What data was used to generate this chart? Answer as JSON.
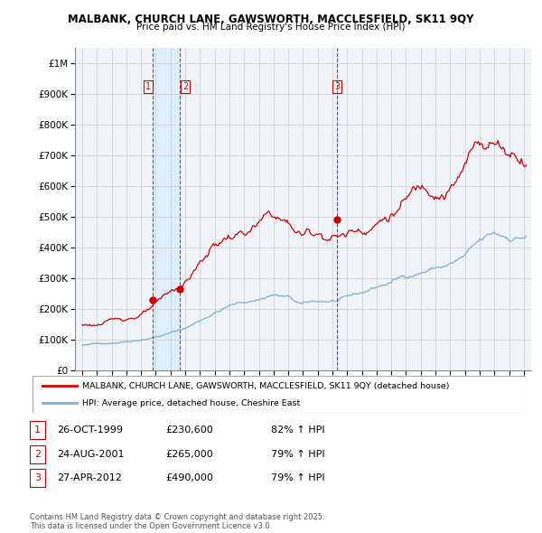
{
  "title_line1": "MALBANK, CHURCH LANE, GAWSWORTH, MACCLESFIELD, SK11 9QY",
  "title_line2": "Price paid vs. HM Land Registry's House Price Index (HPI)",
  "property_color": "#cc0000",
  "hpi_color": "#7ab0d4",
  "hpi_color_light": "#aaccee",
  "background_color": "#f0f4f8",
  "grid_color": "#cccccc",
  "ylim": [
    0,
    1050000
  ],
  "yticks": [
    0,
    100000,
    200000,
    300000,
    400000,
    500000,
    600000,
    700000,
    800000,
    900000,
    1000000
  ],
  "ytick_labels": [
    "£0",
    "£100K",
    "£200K",
    "£300K",
    "£400K",
    "£500K",
    "£600K",
    "£700K",
    "£800K",
    "£900K",
    "£1M"
  ],
  "xlim_start": 1994.5,
  "xlim_end": 2025.5,
  "xtick_years": [
    1995,
    1996,
    1997,
    1998,
    1999,
    2000,
    2001,
    2002,
    2003,
    2004,
    2005,
    2006,
    2007,
    2008,
    2009,
    2010,
    2011,
    2012,
    2013,
    2014,
    2015,
    2016,
    2017,
    2018,
    2019,
    2020,
    2021,
    2022,
    2023,
    2024,
    2025
  ],
  "purchases": [
    {
      "label": "1",
      "year": 1999.82,
      "price": 230600
    },
    {
      "label": "2",
      "year": 2001.65,
      "price": 265000
    },
    {
      "label": "3",
      "year": 2012.33,
      "price": 490000
    }
  ],
  "purchase_vline_color": "#cc0000",
  "shade_color": "#ddeeff",
  "legend_property_label": "MALBANK, CHURCH LANE, GAWSWORTH, MACCLESFIELD, SK11 9QY (detached house)",
  "legend_hpi_label": "HPI: Average price, detached house, Cheshire East",
  "table_rows": [
    {
      "num": "1",
      "date": "26-OCT-1999",
      "price": "£230,600",
      "hpi": "82% ↑ HPI"
    },
    {
      "num": "2",
      "date": "24-AUG-2001",
      "price": "£265,000",
      "hpi": "79% ↑ HPI"
    },
    {
      "num": "3",
      "date": "27-APR-2012",
      "price": "£490,000",
      "hpi": "79% ↑ HPI"
    }
  ],
  "footnote": "Contains HM Land Registry data © Crown copyright and database right 2025.\nThis data is licensed under the Open Government Licence v3.0."
}
